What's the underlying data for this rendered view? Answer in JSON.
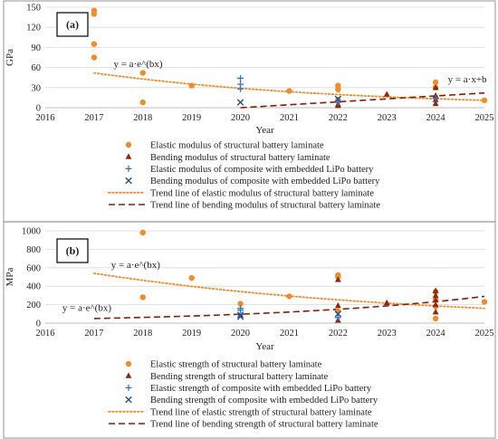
{
  "chart_data": [
    {
      "type": "scatter",
      "panel_label": "(a)",
      "ylabel": "GPa",
      "xlabel": "Year",
      "xlim": [
        2016,
        2025
      ],
      "ylim": [
        0,
        150
      ],
      "x_ticks": [
        "2016",
        "2017",
        "2018",
        "2019",
        "2020",
        "2021",
        "2022",
        "2023",
        "2024",
        "2025"
      ],
      "y_ticks": [
        "0",
        "30",
        "60",
        "90",
        "120",
        "150"
      ],
      "grid": "horizontal",
      "legend_position": "bottom",
      "series": [
        {
          "name": "Elastic modulus of structural battery laminate",
          "marker": "circle",
          "color": "#f28c28",
          "points": [
            [
              2017,
              145
            ],
            [
              2017,
              140
            ],
            [
              2017,
              95
            ],
            [
              2017,
              75
            ],
            [
              2018,
              52
            ],
            [
              2018,
              8
            ],
            [
              2019,
              33
            ],
            [
              2021,
              25
            ],
            [
              2022,
              33
            ],
            [
              2022,
              27
            ],
            [
              2022,
              12
            ],
            [
              2024,
              38
            ],
            [
              2024,
              30
            ],
            [
              2025,
              11
            ]
          ]
        },
        {
          "name": "Bending modulus of structural battery laminate",
          "marker": "triangle",
          "color": "#8b2a0a",
          "points": [
            [
              2022,
              5
            ],
            [
              2022,
              3
            ],
            [
              2023,
              20
            ],
            [
              2024,
              30
            ],
            [
              2024,
              18
            ],
            [
              2024,
              12
            ],
            [
              2024,
              6
            ]
          ]
        },
        {
          "name": "Elastic modulus of composite with embedded LiPo battery",
          "marker": "plus",
          "color": "#2e75c8",
          "points": [
            [
              2020,
              44
            ],
            [
              2020,
              35
            ],
            [
              2020,
              28
            ],
            [
              2022,
              8
            ],
            [
              2024,
              14
            ]
          ]
        },
        {
          "name": "Bending modulus of composite with embedded LiPo battery",
          "marker": "x",
          "color": "#1f4e8c",
          "points": [
            [
              2020,
              8
            ],
            [
              2022,
              13
            ]
          ]
        }
      ],
      "trendlines": [
        {
          "name": "Trend line of elastic modulus of structural battery laminate",
          "style": "dotted",
          "color": "#f28c28",
          "kind": "exponential",
          "x_range": [
            2017,
            2025
          ],
          "y_range": [
            52,
            11
          ]
        },
        {
          "name": "Trend line of bending modulus of structural battery laminate",
          "style": "dashed",
          "color": "#8b1a0a",
          "kind": "linear",
          "x_range": [
            2020,
            2025
          ],
          "y_range": [
            0,
            22
          ]
        }
      ],
      "annotations": [
        {
          "text": "y = a·e^(bx)",
          "x": 2017.4,
          "y": 61
        },
        {
          "text": "y = a·x+b",
          "x": 2024.25,
          "y": 38
        }
      ]
    },
    {
      "type": "scatter",
      "panel_label": "(b)",
      "ylabel": "MPa",
      "xlabel": "Year",
      "xlim": [
        2016,
        2025
      ],
      "ylim": [
        0,
        1000
      ],
      "x_ticks": [
        "2016",
        "2017",
        "2018",
        "2019",
        "2020",
        "2021",
        "2022",
        "2023",
        "2024",
        "2025"
      ],
      "y_ticks": [
        "0",
        "200",
        "400",
        "600",
        "800",
        "1000"
      ],
      "grid": "horizontal",
      "legend_position": "bottom",
      "series": [
        {
          "name": "Elastic strength of structural battery laminate",
          "marker": "circle",
          "color": "#f28c28",
          "points": [
            [
              2018,
              980
            ],
            [
              2018,
              280
            ],
            [
              2019,
              490
            ],
            [
              2020,
              210
            ],
            [
              2021,
              290
            ],
            [
              2022,
              520
            ],
            [
              2022,
              500
            ],
            [
              2022,
              130
            ],
            [
              2024,
              340
            ],
            [
              2024,
              260
            ],
            [
              2024,
              180
            ],
            [
              2024,
              50
            ],
            [
              2025,
              230
            ]
          ]
        },
        {
          "name": "Bending strength of structural battery laminate",
          "marker": "triangle",
          "color": "#8b2a0a",
          "points": [
            [
              2022,
              470
            ],
            [
              2022,
              190
            ],
            [
              2022,
              30
            ],
            [
              2023,
              220
            ],
            [
              2024,
              350
            ],
            [
              2024,
              300
            ],
            [
              2024,
              250
            ],
            [
              2024,
              200
            ],
            [
              2024,
              120
            ]
          ]
        },
        {
          "name": "Elastic strength of composite with embedded LiPo battery",
          "marker": "plus",
          "color": "#2e75c8",
          "points": [
            [
              2020,
              160
            ],
            [
              2020,
              140
            ],
            [
              2022,
              60
            ]
          ]
        },
        {
          "name": "Bending strength of composite with embedded LiPo battery",
          "marker": "x",
          "color": "#1f4e8c",
          "points": [
            [
              2020,
              90
            ],
            [
              2020,
              70
            ],
            [
              2022,
              100
            ]
          ]
        }
      ],
      "trendlines": [
        {
          "name": "Trend line of elastic strength of structural battery laminate",
          "style": "dotted",
          "color": "#f28c28",
          "kind": "exponential",
          "x_range": [
            2017,
            2025
          ],
          "y_range": [
            540,
            160
          ]
        },
        {
          "name": "Trend line of bending strength of structural battery laminate",
          "style": "dashed",
          "color": "#8b1a0a",
          "kind": "exponential",
          "x_range": [
            2017,
            2025
          ],
          "y_range": [
            50,
            290
          ]
        }
      ],
      "annotations": [
        {
          "text": "y = a·e^(bx)",
          "x": 2017.35,
          "y": 600
        },
        {
          "text": "y = a·e^(bx)",
          "x": 2016.35,
          "y": 130
        }
      ]
    }
  ]
}
